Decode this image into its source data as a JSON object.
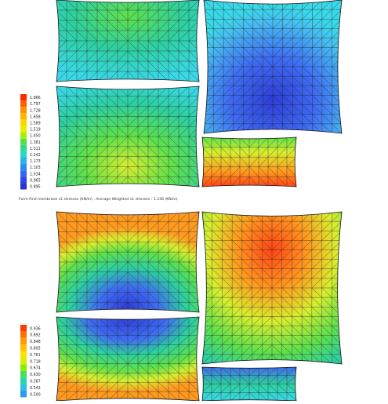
{
  "plots": [
    {
      "caption": "Form-Find membrane s1 stresses (KN/m) : Average Weighted s1 stresses : 1.236 (KN/m)",
      "legend": {
        "values": [
          "1.866",
          "1.797",
          "1.728",
          "1.658",
          "1.589",
          "1.519",
          "1.450",
          "1.381",
          "1.311",
          "1.242",
          "1.173",
          "1.103",
          "1.034",
          "0.965",
          "0.895"
        ],
        "colors": [
          "#ff2a00",
          "#ff5f00",
          "#ff9000",
          "#ffb400",
          "#ffd800",
          "#e5f000",
          "#a8f000",
          "#55e04a",
          "#30d98e",
          "#2ad6c6",
          "#2ab4e8",
          "#2a8cf0",
          "#3366f2",
          "#3344ee",
          "#2a33d4"
        ]
      }
    },
    {
      "caption": "",
      "legend": {
        "values": [
          "0.936",
          "0.892",
          "0.848",
          "0.805",
          "0.761",
          "0.718",
          "0.674",
          "0.630",
          "0.587",
          "0.543",
          "0.500"
        ],
        "colors": [
          "#ff3a00",
          "#ff6e00",
          "#ff9a00",
          "#ffc000",
          "#ffe000",
          "#d8f000",
          "#8cec00",
          "#4ade56",
          "#2ad6a6",
          "#2ac2e0",
          "#2a9cf0"
        ]
      }
    }
  ],
  "colormaps": {
    "cyan": "#3ad8e8",
    "teal": "#2ecfa0",
    "green": "#5fe04c",
    "blue": "#3f6cf2",
    "deepblue": "#2f3ed8",
    "yellow": "#d8ee30",
    "orange": "#ff9a20",
    "red": "#ff4418",
    "lightblue": "#48bff0"
  }
}
